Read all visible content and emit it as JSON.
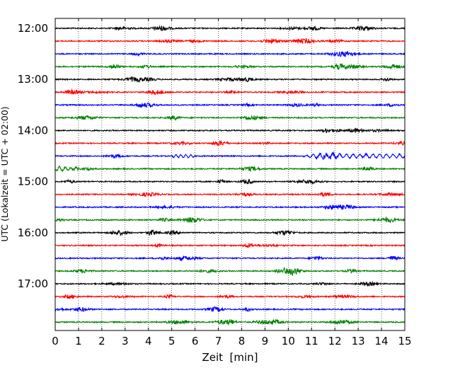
{
  "chart_data": {
    "type": "line",
    "title": "",
    "xlabel": "Zeit  [min]",
    "ylabel": "UTC (Lokalzeit = UTC + 02:00)",
    "xlim": [
      0,
      15
    ],
    "x_ticks": [
      "0",
      "1",
      "2",
      "3",
      "4",
      "5",
      "6",
      "7",
      "8",
      "9",
      "10",
      "11",
      "12",
      "13",
      "14",
      "15"
    ],
    "y_ticks": [
      "12:00",
      "13:00",
      "14:00",
      "15:00",
      "16:00",
      "17:00"
    ],
    "grid": "vertical dotted lines at each minute",
    "trace_interval_minutes": 15,
    "trace_color_cycle": [
      "#000000",
      "#ff0000",
      "#0000ff",
      "#007f00"
    ],
    "traces": [
      {
        "start": "12:00",
        "color": "#000000"
      },
      {
        "start": "12:15",
        "color": "#ff0000"
      },
      {
        "start": "12:30",
        "color": "#0000ff"
      },
      {
        "start": "12:45",
        "color": "#007f00"
      },
      {
        "start": "13:00",
        "color": "#000000"
      },
      {
        "start": "13:15",
        "color": "#ff0000"
      },
      {
        "start": "13:30",
        "color": "#0000ff"
      },
      {
        "start": "13:45",
        "color": "#007f00"
      },
      {
        "start": "14:00",
        "color": "#000000"
      },
      {
        "start": "14:15",
        "color": "#ff0000"
      },
      {
        "start": "14:30",
        "color": "#0000ff",
        "note": "wavy disturbance from ~10.5 to 15 min"
      },
      {
        "start": "14:45",
        "color": "#007f00",
        "note": "larger wavy disturbance from 0 to ~1.5 min"
      },
      {
        "start": "15:00",
        "color": "#000000"
      },
      {
        "start": "15:15",
        "color": "#ff0000"
      },
      {
        "start": "15:30",
        "color": "#0000ff"
      },
      {
        "start": "15:45",
        "color": "#007f00"
      },
      {
        "start": "16:00",
        "color": "#000000"
      },
      {
        "start": "16:15",
        "color": "#ff0000"
      },
      {
        "start": "16:30",
        "color": "#0000ff"
      },
      {
        "start": "16:45",
        "color": "#007f00",
        "note": "burst around 9.5-10 min"
      },
      {
        "start": "17:00",
        "color": "#000000"
      },
      {
        "start": "17:15",
        "color": "#ff0000"
      },
      {
        "start": "17:30",
        "color": "#0000ff"
      },
      {
        "start": "17:45",
        "color": "#007f00"
      }
    ]
  }
}
